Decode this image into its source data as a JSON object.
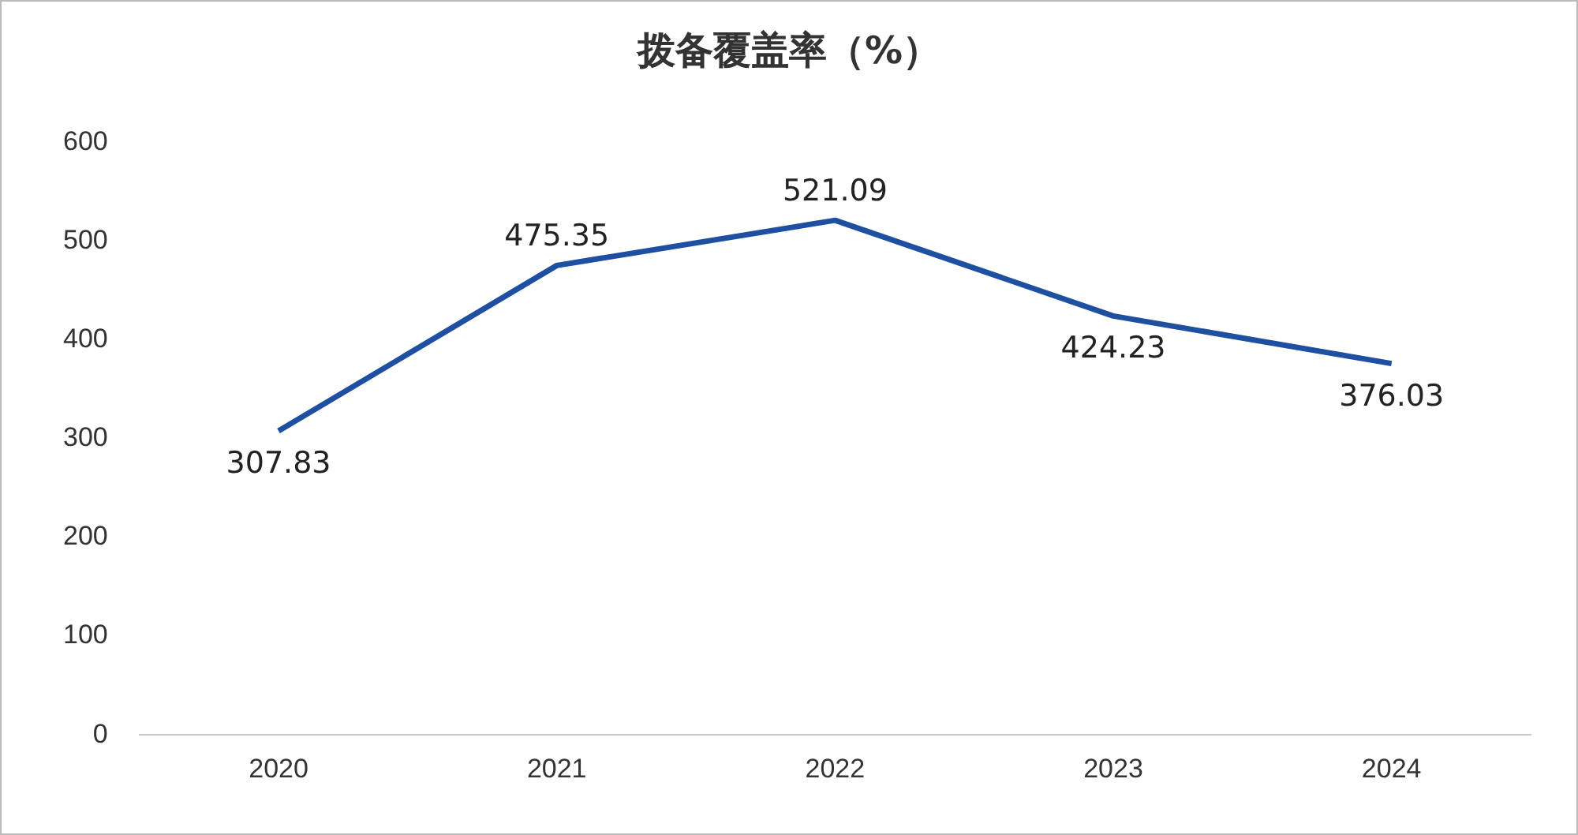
{
  "chart_data": {
    "type": "line",
    "title": "拨备覆盖率（%）",
    "categories": [
      "2020",
      "2021",
      "2022",
      "2023",
      "2024"
    ],
    "series": [
      {
        "color": "#1f4fa0",
        "values": [
          307.83,
          475.35,
          521.09,
          424.23,
          376.03
        ]
      }
    ],
    "ylim": [
      0,
      600
    ],
    "yticks": [
      0,
      100,
      200,
      300,
      400,
      500,
      600
    ],
    "grid": false,
    "legend": false,
    "marker": "none",
    "data_labels": true
  }
}
